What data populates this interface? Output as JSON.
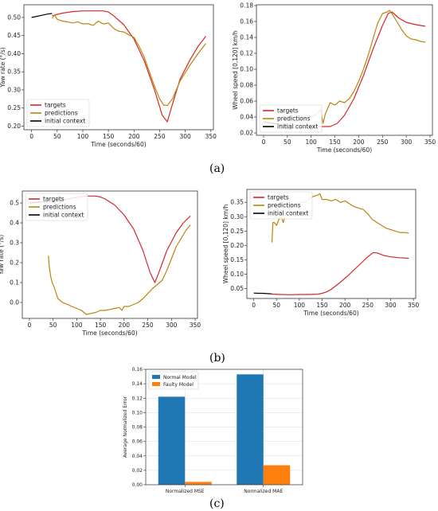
{
  "panel_labels": {
    "a": "(a)",
    "b": "(b)",
    "c": "(c)"
  },
  "colors": {
    "targets": "#d62728",
    "predictions": "#b8860b",
    "initial_context": "#000000",
    "normal_model": "#1f77b4",
    "faulty_model": "#ff7f0e"
  },
  "chart_data": [
    {
      "id": "a_yaw",
      "type": "line",
      "xlabel": "Time (seconds/60)",
      "ylabel": "Yaw rate (°/s)",
      "xlim": [
        -15,
        355
      ],
      "ylim": [
        0.19,
        0.535
      ],
      "xticks": [
        0,
        50,
        100,
        150,
        200,
        250,
        300,
        350
      ],
      "yticks": [
        0.2,
        0.25,
        0.3,
        0.35,
        0.4,
        0.45,
        0.5
      ],
      "ytick_labels": [
        "0.20",
        "0.25",
        "0.30",
        "0.35",
        "0.40",
        "0.45",
        "0.50"
      ],
      "legend_position": "lower-left",
      "series": [
        {
          "name": "targets",
          "color": "#d62728",
          "x": [
            40,
            60,
            80,
            100,
            120,
            140,
            150,
            160,
            180,
            200,
            220,
            240,
            255,
            265,
            275,
            290,
            310,
            325,
            340
          ],
          "y": [
            0.505,
            0.512,
            0.516,
            0.518,
            0.518,
            0.518,
            0.515,
            0.505,
            0.48,
            0.44,
            0.38,
            0.3,
            0.23,
            0.212,
            0.26,
            0.33,
            0.385,
            0.42,
            0.448
          ]
        },
        {
          "name": "predictions",
          "color": "#b8860b",
          "x": [
            40,
            45,
            50,
            60,
            70,
            80,
            90,
            100,
            110,
            120,
            130,
            140,
            150,
            160,
            170,
            180,
            190,
            200,
            210,
            220,
            230,
            240,
            250,
            258,
            265,
            275,
            290,
            310,
            325,
            340
          ],
          "y": [
            0.498,
            0.507,
            0.495,
            0.49,
            0.488,
            0.485,
            0.488,
            0.482,
            0.483,
            0.478,
            0.49,
            0.482,
            0.485,
            0.47,
            0.462,
            0.46,
            0.452,
            0.445,
            0.42,
            0.39,
            0.35,
            0.31,
            0.275,
            0.258,
            0.257,
            0.275,
            0.325,
            0.37,
            0.4,
            0.428
          ]
        },
        {
          "name": "initial context",
          "color": "#000000",
          "x": [
            0,
            10,
            20,
            30,
            40
          ],
          "y": [
            0.5,
            0.503,
            0.506,
            0.509,
            0.511
          ]
        }
      ]
    },
    {
      "id": "a_wheel",
      "type": "line",
      "xlabel": "Time (seconds/60)",
      "ylabel": "Wheel speed [0,120] km/h",
      "xlim": [
        -15,
        355
      ],
      "ylim": [
        0.017,
        0.181
      ],
      "xticks": [
        0,
        50,
        100,
        150,
        200,
        250,
        300,
        350
      ],
      "yticks": [
        0.02,
        0.04,
        0.06,
        0.08,
        0.1,
        0.12,
        0.14,
        0.16,
        0.18
      ],
      "ytick_labels": [
        "0.02",
        "0.04",
        "0.06",
        "0.08",
        "0.10",
        "0.12",
        "0.14",
        "0.16",
        "0.18"
      ],
      "legend_position": "lower-left",
      "series": [
        {
          "name": "targets",
          "color": "#d62728",
          "x": [
            40,
            60,
            80,
            100,
            120,
            140,
            155,
            170,
            190,
            210,
            230,
            250,
            262,
            270,
            285,
            300,
            320,
            340
          ],
          "y": [
            0.027,
            0.026,
            0.027,
            0.027,
            0.028,
            0.028,
            0.032,
            0.042,
            0.063,
            0.092,
            0.125,
            0.155,
            0.17,
            0.172,
            0.164,
            0.159,
            0.156,
            0.154
          ]
        },
        {
          "name": "predictions",
          "color": "#b8860b",
          "x": [
            40,
            50,
            60,
            75,
            90,
            100,
            110,
            120,
            125,
            130,
            140,
            150,
            160,
            170,
            180,
            190,
            200,
            210,
            220,
            230,
            240,
            250,
            260,
            265,
            270,
            280,
            290,
            300,
            310,
            320,
            330,
            340
          ],
          "y": [
            0.03,
            0.029,
            0.034,
            0.036,
            0.039,
            0.04,
            0.043,
            0.049,
            0.032,
            0.044,
            0.058,
            0.055,
            0.06,
            0.058,
            0.063,
            0.072,
            0.085,
            0.1,
            0.118,
            0.138,
            0.158,
            0.17,
            0.172,
            0.174,
            0.17,
            0.16,
            0.15,
            0.142,
            0.138,
            0.137,
            0.135,
            0.134
          ]
        },
        {
          "name": "initial context",
          "color": "#000000",
          "x": [
            0,
            10,
            20,
            30,
            40
          ],
          "y": [
            0.034,
            0.033,
            0.032,
            0.031,
            0.03
          ]
        }
      ]
    },
    {
      "id": "b_yaw",
      "type": "line",
      "xlabel": "Time (seconds/60)",
      "ylabel": "Yaw rate (°/s)",
      "xlim": [
        -15,
        355
      ],
      "ylim": [
        -0.08,
        0.56
      ],
      "xticks": [
        0,
        50,
        100,
        150,
        200,
        250,
        300,
        350
      ],
      "yticks": [
        0.0,
        0.1,
        0.2,
        0.3,
        0.4,
        0.5
      ],
      "ytick_labels": [
        "0.0",
        "0.1",
        "0.2",
        "0.3",
        "0.4",
        "0.5"
      ],
      "legend_position": "upper-left",
      "series": [
        {
          "name": "targets",
          "color": "#d62728",
          "x": [
            40,
            60,
            80,
            100,
            120,
            140,
            150,
            160,
            180,
            200,
            220,
            240,
            255,
            265,
            275,
            290,
            310,
            325,
            340
          ],
          "y": [
            0.505,
            0.512,
            0.52,
            0.528,
            0.535,
            0.535,
            0.53,
            0.52,
            0.49,
            0.44,
            0.37,
            0.26,
            0.15,
            0.1,
            0.16,
            0.26,
            0.35,
            0.4,
            0.435
          ]
        },
        {
          "name": "predictions",
          "color": "#b8860b",
          "x": [
            40,
            42,
            45,
            48,
            52,
            56,
            60,
            70,
            80,
            90,
            100,
            110,
            115,
            120,
            130,
            140,
            150,
            160,
            170,
            180,
            190,
            195,
            200,
            210,
            220,
            230,
            240,
            250,
            260,
            270,
            280,
            290,
            300,
            310,
            320,
            330,
            340
          ],
          "y": [
            0.235,
            0.18,
            0.13,
            0.1,
            0.08,
            0.05,
            0.02,
            0.0,
            -0.01,
            -0.02,
            -0.03,
            -0.04,
            -0.05,
            -0.06,
            -0.055,
            -0.05,
            -0.04,
            -0.04,
            -0.035,
            -0.03,
            -0.025,
            -0.04,
            -0.02,
            -0.02,
            -0.01,
            0.0,
            0.02,
            0.045,
            0.07,
            0.09,
            0.11,
            0.16,
            0.22,
            0.28,
            0.32,
            0.36,
            0.39
          ]
        },
        {
          "name": "initial context",
          "color": "#000000",
          "x": [
            0,
            10,
            20,
            30,
            40
          ],
          "y": [
            0.5,
            0.502,
            0.504,
            0.506,
            0.505
          ]
        }
      ]
    },
    {
      "id": "b_wheel",
      "type": "line",
      "xlabel": "Time (seconds/60)",
      "ylabel": "Wheel speed [0,120] km/h",
      "xlim": [
        -15,
        355
      ],
      "ylim": [
        0.015,
        0.395
      ],
      "xticks": [
        0,
        50,
        100,
        150,
        200,
        250,
        300,
        350
      ],
      "yticks": [
        0.05,
        0.1,
        0.15,
        0.2,
        0.25,
        0.3,
        0.35
      ],
      "ytick_labels": [
        "0.05",
        "0.10",
        "0.15",
        "0.20",
        "0.25",
        "0.30",
        "0.35"
      ],
      "legend_position": "upper-left",
      "series": [
        {
          "name": "targets",
          "color": "#d62728",
          "x": [
            40,
            60,
            80,
            100,
            120,
            140,
            150,
            160,
            170,
            190,
            210,
            230,
            250,
            262,
            270,
            285,
            300,
            320,
            340
          ],
          "y": [
            0.03,
            0.029,
            0.028,
            0.029,
            0.029,
            0.03,
            0.033,
            0.038,
            0.047,
            0.072,
            0.1,
            0.13,
            0.16,
            0.175,
            0.174,
            0.165,
            0.16,
            0.157,
            0.155
          ]
        },
        {
          "name": "predictions",
          "color": "#b8860b",
          "x": [
            40,
            42,
            45,
            50,
            55,
            60,
            65,
            70,
            80,
            90,
            100,
            110,
            120,
            130,
            140,
            145,
            150,
            160,
            170,
            180,
            190,
            200,
            210,
            220,
            230,
            240,
            250,
            260,
            270,
            280,
            290,
            300,
            310,
            320,
            330,
            340
          ],
          "y": [
            0.21,
            0.28,
            0.28,
            0.27,
            0.29,
            0.3,
            0.28,
            0.31,
            0.33,
            0.34,
            0.35,
            0.35,
            0.36,
            0.37,
            0.375,
            0.38,
            0.36,
            0.36,
            0.355,
            0.36,
            0.35,
            0.355,
            0.345,
            0.335,
            0.33,
            0.325,
            0.31,
            0.29,
            0.28,
            0.27,
            0.26,
            0.255,
            0.25,
            0.245,
            0.245,
            0.243
          ]
        },
        {
          "name": "initial context",
          "color": "#000000",
          "x": [
            0,
            10,
            20,
            30,
            40
          ],
          "y": [
            0.034,
            0.033,
            0.033,
            0.032,
            0.031
          ]
        }
      ]
    },
    {
      "id": "c_errors",
      "type": "bar",
      "ylabel": "Average Normalized Error",
      "categories": [
        "Normalized MSE",
        "Normalized MAE"
      ],
      "ylim": [
        0,
        0.16
      ],
      "yticks": [
        0.0,
        0.02,
        0.04,
        0.06,
        0.08,
        0.1,
        0.12,
        0.14,
        0.16
      ],
      "ytick_labels": [
        "0.00",
        "0.02",
        "0.04",
        "0.06",
        "0.08",
        "0.10",
        "0.12",
        "0.14",
        "0.16"
      ],
      "grid": true,
      "legend_position": "upper-left",
      "series": [
        {
          "name": "Normal Model",
          "color": "#1f77b4",
          "values": [
            0.122,
            0.153
          ]
        },
        {
          "name": "Faulty Model",
          "color": "#ff7f0e",
          "values": [
            0.004,
            0.027
          ]
        }
      ]
    }
  ]
}
